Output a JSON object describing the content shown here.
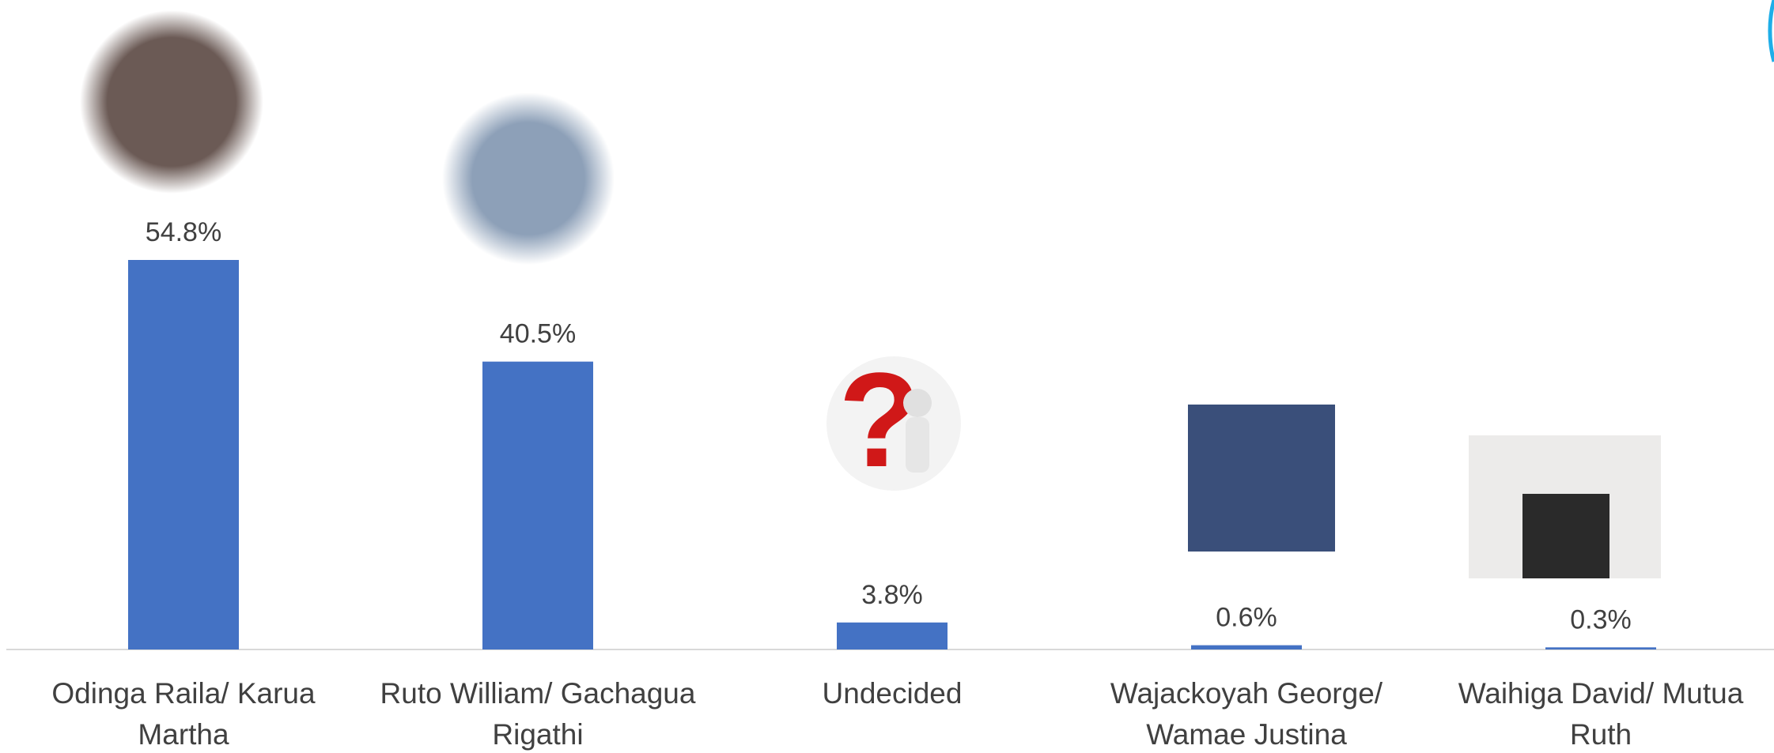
{
  "chart_data": {
    "type": "bar",
    "categories": [
      "Odinga Raila/ Karua Martha",
      "Ruto William/ Gachagua Rigathi",
      "Undecided",
      "Wajackoyah George/ Wamae Justina",
      "Waihiga David/ Mutua Ruth"
    ],
    "values": [
      54.8,
      40.5,
      3.8,
      0.6,
      0.3
    ],
    "value_labels": [
      "54.8%",
      "40.5%",
      "3.8%",
      "0.6%",
      "0.3%"
    ],
    "color": "#4472c4"
  }
}
